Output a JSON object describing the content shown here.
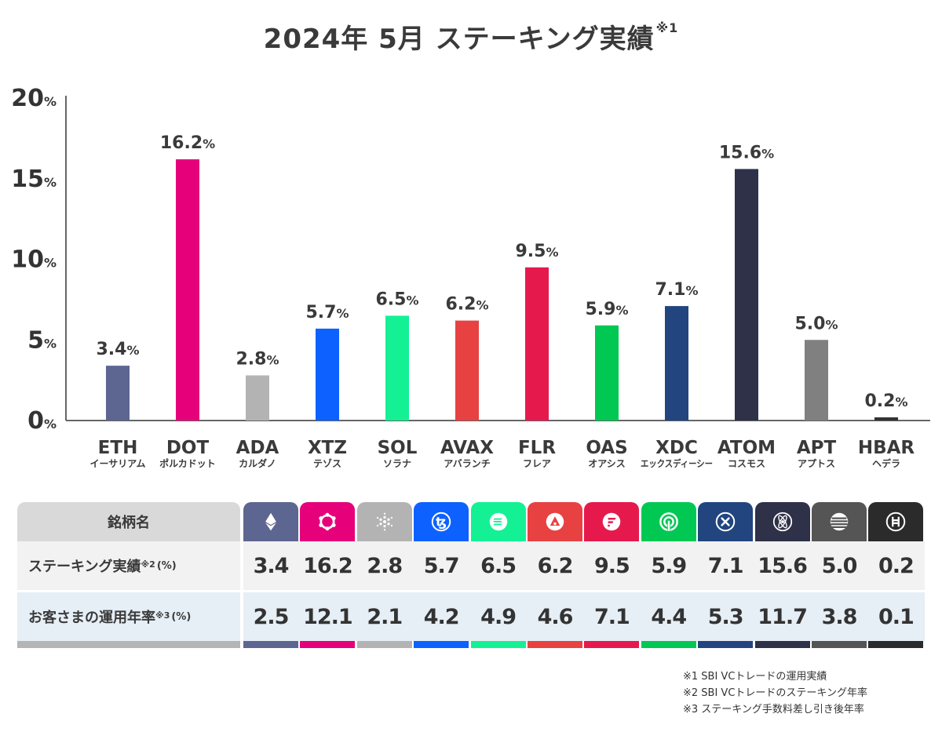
{
  "title": {
    "main": "2024年 5月 ステーキング実績",
    "mark": "※1"
  },
  "chart_data": {
    "type": "bar",
    "title": "2024年 5月 ステーキング実績※1",
    "xlabel": "",
    "ylabel": "",
    "ylim": [
      0,
      20
    ],
    "yticks": [
      0,
      5,
      10,
      15,
      20
    ],
    "ytick_unit": "%",
    "grid": false,
    "legend": "none",
    "categories": [
      "ETH",
      "DOT",
      "ADA",
      "XTZ",
      "SOL",
      "AVAX",
      "FLR",
      "OAS",
      "XDC",
      "ATOM",
      "APT",
      "HBAR"
    ],
    "category_kana": [
      "イーサリアム",
      "ポルカドット",
      "カルダノ",
      "テゾス",
      "ソラナ",
      "アバランチ",
      "フレア",
      "オアシス",
      "エックスディーシー",
      "コスモス",
      "アプトス",
      "ヘデラ"
    ],
    "values": [
      3.4,
      16.2,
      2.8,
      5.7,
      6.5,
      6.2,
      9.5,
      5.9,
      7.1,
      15.6,
      5.0,
      0.2
    ],
    "value_labels": [
      "3.4",
      "16.2",
      "2.8",
      "5.7",
      "6.5",
      "6.2",
      "9.5",
      "5.9",
      "7.1",
      "15.6",
      "5.0",
      "0.2"
    ],
    "value_unit": "%",
    "colors": [
      "#5d6690",
      "#e6007a",
      "#b3b3b3",
      "#0d61ff",
      "#14f195",
      "#e84142",
      "#e6194d",
      "#00c853",
      "#224580",
      "#2e3148",
      "#808080",
      "#333333"
    ]
  },
  "table": {
    "header_label": "銘柄名",
    "row1_label": "ステーキング実績",
    "row1_mark": "※2",
    "row1_unit": "(%)",
    "row2_label": "お客さまの運用年率",
    "row2_mark": "※3",
    "row2_unit": "(%)",
    "coins": [
      {
        "symbol": "ETH",
        "icon": "ethereum-icon",
        "color": "#5d6690",
        "staking": "3.4",
        "annual": "2.5"
      },
      {
        "symbol": "DOT",
        "icon": "polkadot-icon",
        "color": "#e6007a",
        "staking": "16.2",
        "annual": "12.1"
      },
      {
        "symbol": "ADA",
        "icon": "cardano-icon",
        "color": "#b3b3b3",
        "staking": "2.8",
        "annual": "2.1"
      },
      {
        "symbol": "XTZ",
        "icon": "tezos-icon",
        "color": "#0d61ff",
        "staking": "5.7",
        "annual": "4.2"
      },
      {
        "symbol": "SOL",
        "icon": "solana-icon",
        "color": "#14f195",
        "staking": "6.5",
        "annual": "4.9"
      },
      {
        "symbol": "AVAX",
        "icon": "avalanche-icon",
        "color": "#e84142",
        "staking": "6.2",
        "annual": "4.6"
      },
      {
        "symbol": "FLR",
        "icon": "flare-icon",
        "color": "#e6194d",
        "staking": "9.5",
        "annual": "7.1"
      },
      {
        "symbol": "OAS",
        "icon": "oasys-icon",
        "color": "#00c853",
        "staking": "5.9",
        "annual": "4.4"
      },
      {
        "symbol": "XDC",
        "icon": "xdc-icon",
        "color": "#224580",
        "staking": "7.1",
        "annual": "5.3"
      },
      {
        "symbol": "ATOM",
        "icon": "cosmos-icon",
        "color": "#2e3148",
        "staking": "15.6",
        "annual": "11.7"
      },
      {
        "symbol": "APT",
        "icon": "aptos-icon",
        "color": "#555555",
        "staking": "5.0",
        "annual": "3.8"
      },
      {
        "symbol": "HBAR",
        "icon": "hedera-icon",
        "color": "#2b2b2b",
        "staking": "0.2",
        "annual": "0.1"
      }
    ]
  },
  "notes": [
    "※1 SBI VCトレードの運用実績",
    "※2 SBI VCトレードのステーキング年率",
    "※3 ステーキング手数料差し引き後年率"
  ]
}
